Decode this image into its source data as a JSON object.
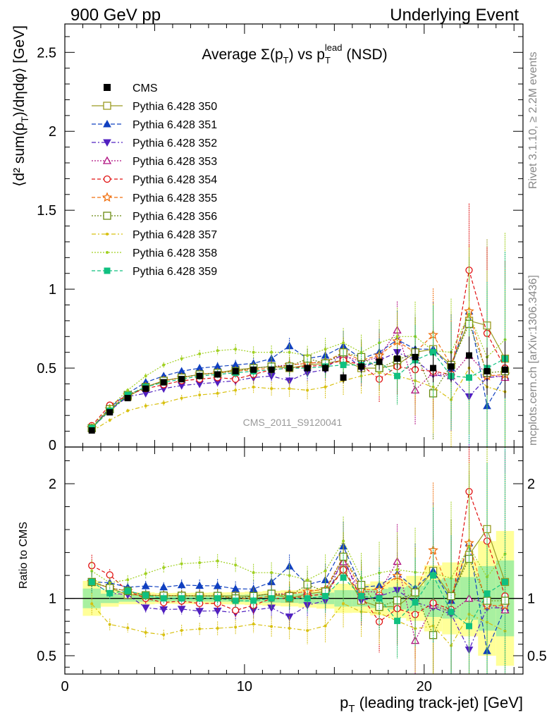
{
  "header": {
    "left": "900 GeV pp",
    "right": "Underlying Event"
  },
  "side_labels": {
    "top": "Rivet 3.1.10, ≥ 2.2M events",
    "bottom": "mcplots.cern.ch [arXiv:1306.3436]"
  },
  "chart_data": {
    "type": "scatter",
    "title": "Average Σ(p_T) vs p_T^lead (NSD)",
    "analysis_label": "CMS_2011_S9120041",
    "xlabel": "p_T (leading track-jet) [GeV]",
    "ylabel": "⟨d² sum(p_T)/dηdφ⟩ [GeV]",
    "ratio_ylabel": "Ratio to CMS",
    "xlim": [
      0,
      25.5
    ],
    "ylim": [
      0,
      2.68
    ],
    "ratio_ylim": [
      0.34,
      2.32
    ],
    "x_ticks": [
      0,
      10,
      20
    ],
    "y_ticks": [
      0.5,
      1,
      1.5,
      2,
      2.5
    ],
    "ratio_ticks": [
      0.5,
      1,
      2
    ],
    "legend_position": "top-left",
    "x": [
      1.5,
      2.5,
      3.5,
      4.5,
      5.5,
      6.5,
      7.5,
      8.5,
      9.5,
      10.5,
      11.5,
      12.5,
      13.5,
      14.5,
      15.5,
      16.5,
      17.5,
      18.5,
      19.5,
      20.5,
      21.5,
      22.5,
      23.5,
      24.5
    ],
    "reference": {
      "name": "CMS",
      "values": [
        0.105,
        0.22,
        0.31,
        0.37,
        0.41,
        0.43,
        0.45,
        0.46,
        0.48,
        0.49,
        0.49,
        0.5,
        0.5,
        0.5,
        0.44,
        0.51,
        0.54,
        0.56,
        0.57,
        0.5,
        0.51,
        0.58,
        0.48,
        0.49
      ],
      "errors": [
        0.01,
        0.01,
        0.01,
        0.012,
        0.012,
        0.013,
        0.014,
        0.015,
        0.016,
        0.018,
        0.02,
        0.022,
        0.025,
        0.028,
        0.035,
        0.04,
        0.05,
        0.06,
        0.07,
        0.09,
        0.1,
        0.12,
        0.15,
        0.18
      ]
    },
    "series": [
      {
        "name": "Pythia 6.428 350",
        "color": "#9a9a20",
        "marker": "square-open",
        "dash": "",
        "values": [
          0.12,
          0.24,
          0.32,
          0.38,
          0.42,
          0.44,
          0.46,
          0.47,
          0.49,
          0.5,
          0.51,
          0.5,
          0.52,
          0.53,
          0.55,
          0.5,
          0.5,
          0.52,
          0.6,
          0.62,
          0.52,
          0.8,
          0.77,
          0.56
        ]
      },
      {
        "name": "Pythia 6.428 351",
        "color": "#1040c0",
        "marker": "triangle-up",
        "dash": "6,3",
        "values": [
          0.12,
          0.25,
          0.34,
          0.41,
          0.45,
          0.48,
          0.5,
          0.51,
          0.52,
          0.53,
          0.56,
          0.64,
          0.56,
          0.58,
          0.64,
          0.56,
          0.6,
          0.68,
          0.62,
          0.62,
          0.5,
          0.86,
          0.26,
          0.45
        ]
      },
      {
        "name": "Pythia 6.428 352",
        "color": "#5020c0",
        "marker": "triangle-down",
        "dash": "6,3,2,3",
        "values": [
          0.12,
          0.23,
          0.32,
          0.34,
          0.37,
          0.39,
          0.4,
          0.41,
          0.42,
          0.44,
          0.45,
          0.42,
          0.47,
          0.49,
          0.6,
          0.5,
          0.55,
          0.6,
          0.55,
          0.46,
          0.44,
          0.32,
          0.44,
          0.45
        ]
      },
      {
        "name": "Pythia 6.428 353",
        "color": "#b01080",
        "marker": "triangle-open",
        "dash": "2,2",
        "values": [
          0.12,
          0.24,
          0.33,
          0.38,
          0.42,
          0.44,
          0.46,
          0.47,
          0.48,
          0.5,
          0.51,
          0.52,
          0.53,
          0.54,
          0.58,
          0.54,
          0.57,
          0.74,
          0.36,
          0.47,
          0.45,
          0.58,
          0.46,
          0.44
        ]
      },
      {
        "name": "Pythia 6.428 354",
        "color": "#e01010",
        "marker": "circle-open",
        "dash": "5,3",
        "values": [
          0.135,
          0.265,
          0.33,
          0.37,
          0.395,
          0.42,
          0.43,
          0.44,
          0.43,
          0.46,
          0.49,
          0.5,
          0.51,
          0.52,
          0.55,
          0.52,
          0.43,
          0.51,
          0.49,
          0.48,
          0.46,
          1.12,
          0.72,
          0.5
        ]
      },
      {
        "name": "Pythia 6.428 355",
        "color": "#f07010",
        "marker": "star-open",
        "dash": "5,3",
        "values": [
          0.12,
          0.24,
          0.33,
          0.38,
          0.42,
          0.44,
          0.46,
          0.47,
          0.48,
          0.49,
          0.5,
          0.52,
          0.53,
          0.54,
          0.6,
          0.55,
          0.58,
          0.67,
          0.6,
          0.71,
          0.52,
          0.86,
          0.45,
          0.46
        ]
      },
      {
        "name": "Pythia 6.428 356",
        "color": "#6a8a10",
        "marker": "square-open",
        "dash": "2,2",
        "values": [
          0.12,
          0.24,
          0.33,
          0.38,
          0.42,
          0.44,
          0.46,
          0.47,
          0.48,
          0.5,
          0.51,
          0.51,
          0.56,
          0.53,
          0.6,
          0.57,
          0.5,
          0.55,
          0.6,
          0.34,
          0.52,
          0.78,
          0.47,
          0.48
        ]
      },
      {
        "name": "Pythia 6.428 357",
        "color": "#d8c010",
        "marker": "dot",
        "dash": "6,3,2,3",
        "values": [
          0.1,
          0.17,
          0.23,
          0.26,
          0.28,
          0.31,
          0.33,
          0.34,
          0.36,
          0.38,
          0.37,
          0.37,
          0.36,
          0.38,
          0.42,
          0.45,
          0.47,
          0.45,
          0.42,
          0.38,
          0.3,
          0.5,
          0.38,
          0.35
        ]
      },
      {
        "name": "Pythia 6.428 358",
        "color": "#a0d020",
        "marker": "dot",
        "dash": "2,2",
        "values": [
          0.13,
          0.25,
          0.36,
          0.45,
          0.52,
          0.56,
          0.59,
          0.61,
          0.62,
          0.6,
          0.6,
          0.6,
          0.58,
          0.62,
          0.66,
          0.6,
          0.66,
          0.7,
          0.7,
          0.61,
          0.6,
          0.84,
          0.57,
          0.68
        ]
      },
      {
        "name": "Pythia 6.428 359",
        "color": "#10c080",
        "marker": "square",
        "dash": "5,3",
        "values": [
          0.12,
          0.23,
          0.33,
          0.38,
          0.41,
          0.43,
          0.45,
          0.46,
          0.47,
          0.48,
          0.49,
          0.5,
          0.5,
          0.51,
          0.52,
          0.52,
          0.54,
          0.45,
          0.55,
          0.6,
          0.45,
          0.44,
          0.5,
          0.56
        ]
      }
    ]
  }
}
